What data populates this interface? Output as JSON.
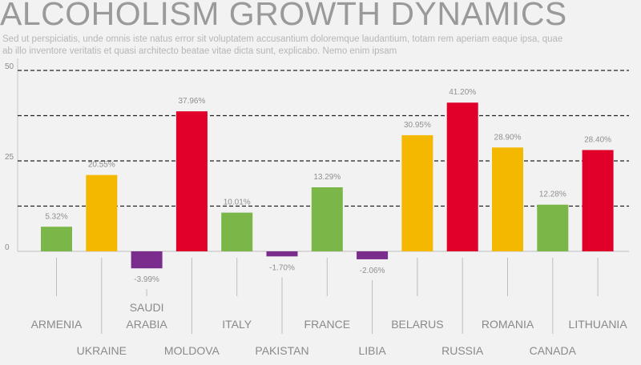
{
  "title": "ALCOHOLISM GROWTH DYNAMICS",
  "subtitle": "Sed ut perspiciatis, unde omnis iste natus error sit voluptatem accusantium doloremque laudantium, totam rem aperiam eaque ipsa, quae ab illo inventore veritatis et quasi architecto beatae vitae dicta sunt, explicabo. Nemo enim ipsam",
  "chart_data": {
    "type": "bar",
    "title": "ALCOHOLISM GROWTH DYNAMICS",
    "ylim": [
      -5,
      52
    ],
    "yticks": [
      0,
      25,
      50
    ],
    "grid": "dashed horizontal",
    "categories": [
      "ARMENIA",
      "UKRAINE",
      "SAUDI ARABIA",
      "MOLDOVA",
      "ITALY",
      "PAKISTAN",
      "FRANCE",
      "LIBIA",
      "BELARUS",
      "RUSSIA",
      "ROMANIA",
      "CANADA",
      "LITHUANIA"
    ],
    "values": [
      5.32,
      20.55,
      -3.99,
      37.96,
      10.01,
      -1.7,
      13.29,
      -2.06,
      30.95,
      41.2,
      28.9,
      12.28,
      28.4
    ],
    "bar_heights": [
      6.8,
      21.1,
      -4.7,
      38.7,
      10.7,
      -1.4,
      17.7,
      -2.2,
      32.1,
      41.1,
      28.7,
      12.9,
      28.0
    ],
    "value_labels": [
      "5.32%",
      "20.55%",
      "-3.99%",
      "37.96%",
      "10.01%",
      "-1.70%",
      "13.29%",
      "-2.06%",
      "30.95%",
      "41.20%",
      "28.90%",
      "12.28%",
      "28.40%"
    ],
    "colors": [
      "#7ab648",
      "#f5b800",
      "#7b2d8e",
      "#e0002a",
      "#7ab648",
      "#7b2d8e",
      "#7ab648",
      "#7b2d8e",
      "#f5b800",
      "#e0002a",
      "#f5b800",
      "#7ab648",
      "#e0002a"
    ],
    "label_rows": [
      0,
      1,
      0,
      1,
      0,
      1,
      0,
      1,
      0,
      1,
      0,
      1,
      0
    ]
  }
}
